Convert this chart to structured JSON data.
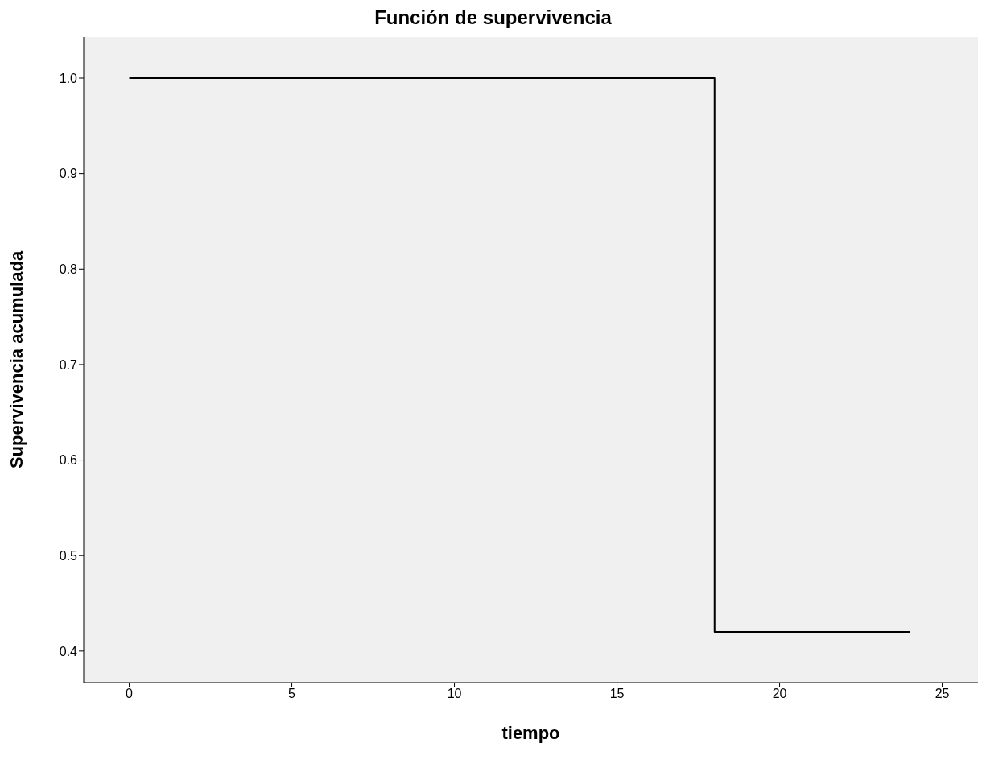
{
  "chart_data": {
    "type": "step",
    "title": "Función de supervivencia",
    "xlabel": "tiempo",
    "ylabel": "Supervivencia acumulada",
    "x": [
      0,
      18,
      24
    ],
    "series": [
      {
        "color": "#000000",
        "values": [
          1.0,
          0.42,
          0.42
        ]
      }
    ],
    "xlim": [
      -1.4,
      26.1
    ],
    "xticks": [
      0,
      5,
      10,
      15,
      20,
      25
    ],
    "ylim": [
      0.367,
      1.043
    ],
    "yticks": [
      0.4,
      0.5,
      0.6,
      0.7,
      0.8,
      0.9,
      {
        "value": 1,
        "label": "1.0"
      }
    ],
    "grid": false,
    "legend": false
  }
}
